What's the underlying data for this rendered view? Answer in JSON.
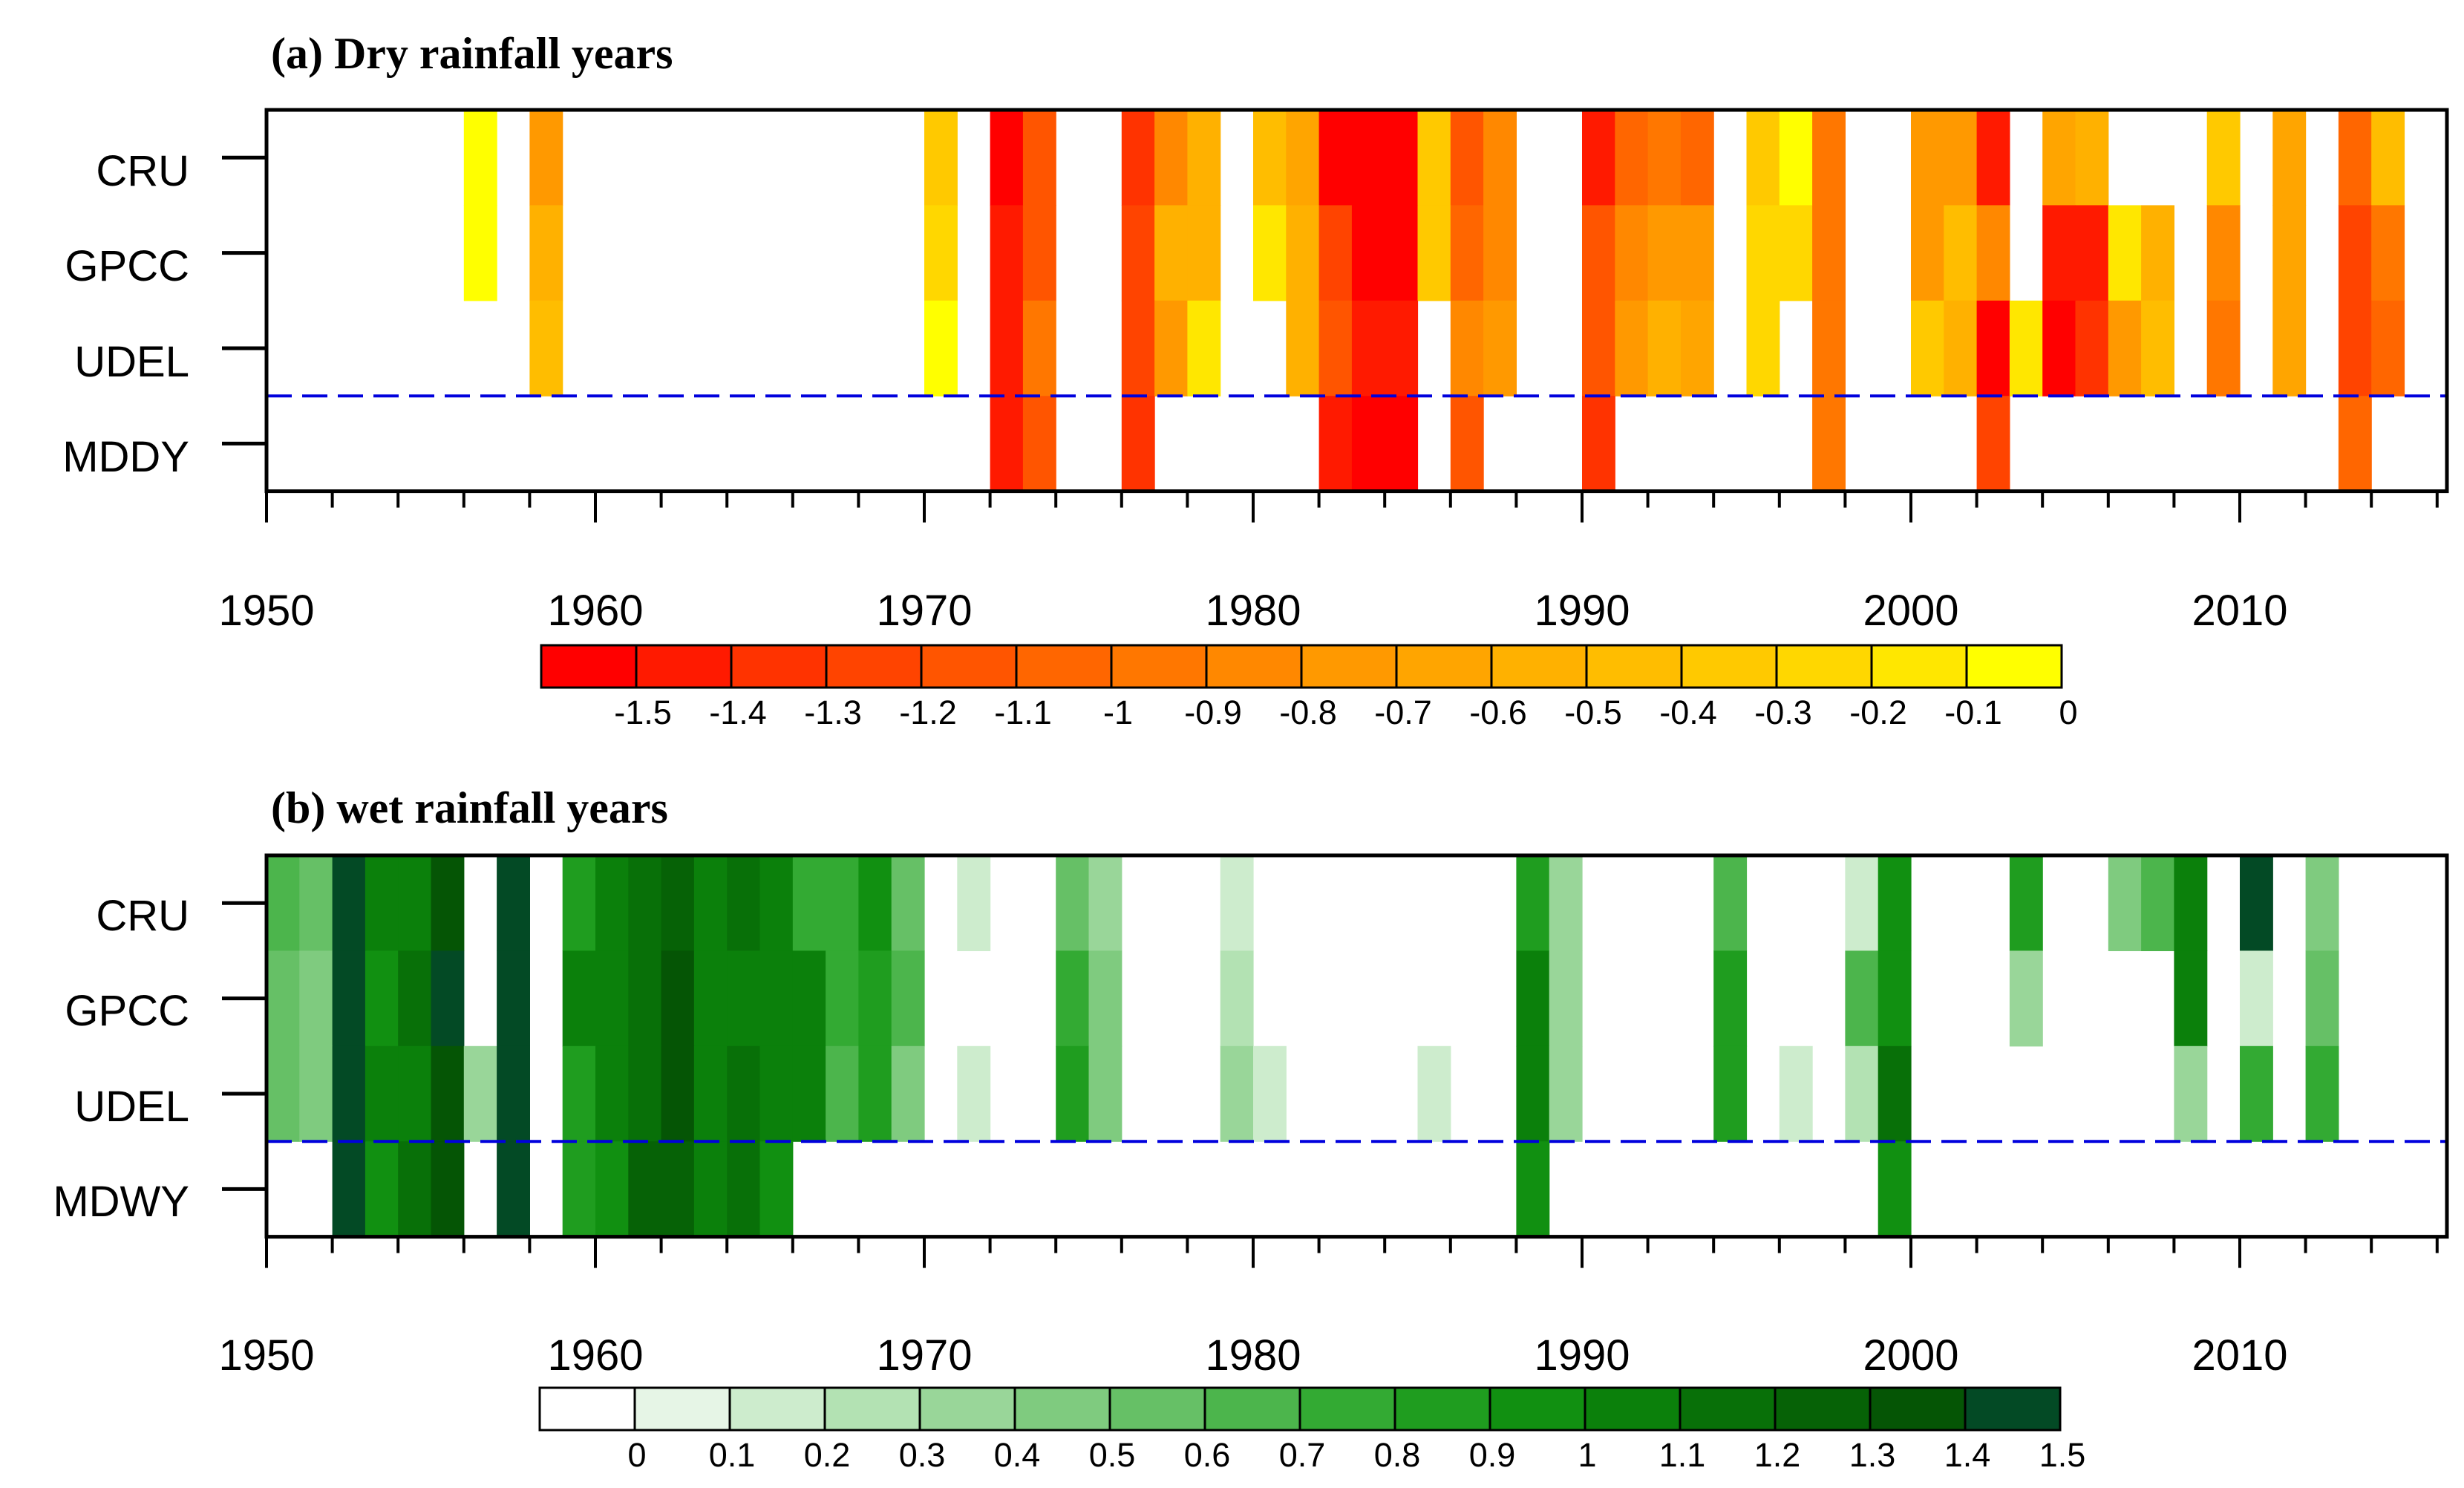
{
  "chart_data": [
    {
      "type": "heatmap",
      "panel": "a",
      "title": "(a) Dry rainfall years",
      "rows": [
        "CRU",
        "GPCC",
        "UDEL",
        "MDDY"
      ],
      "x_range": [
        1950,
        2016
      ],
      "x_ticks": [
        "1950",
        "1960",
        "1970",
        "1980",
        "1990",
        "2000",
        "2010"
      ],
      "colorbar_labels": [
        "-1.5",
        "-1.4",
        "-1.3",
        "-1.2",
        "-1.1",
        "-1",
        "-0.9",
        "-0.8",
        "-0.7",
        "-0.6",
        "-0.5",
        "-0.4",
        "-0.3",
        "-0.2",
        "-0.1",
        "0"
      ],
      "palette": [
        "#ff0000",
        "#ff1a00",
        "#ff3300",
        "#ff4400",
        "#ff5500",
        "#ff6600",
        "#ff7700",
        "#ff8800",
        "#ff9900",
        "#ffa500",
        "#ffb100",
        "#ffbd00",
        "#ffc900",
        "#ffd700",
        "#ffe700",
        "#ffff00"
      ],
      "separator_color": "#0000dd",
      "cells": {
        "CRU": [
          [
            1956,
            -0.05
          ],
          [
            1958,
            -0.75
          ],
          [
            1970,
            -0.35
          ],
          [
            1972,
            -1.55
          ],
          [
            1973,
            -1.15
          ],
          [
            1976,
            -1.4
          ],
          [
            1977,
            -0.85
          ],
          [
            1978,
            -0.55
          ],
          [
            1980,
            -0.45
          ],
          [
            1981,
            -0.65
          ],
          [
            1982,
            -1.6
          ],
          [
            1983,
            -1.6
          ],
          [
            1984,
            -1.6
          ],
          [
            1985,
            -0.4
          ],
          [
            1986,
            -1.2
          ],
          [
            1987,
            -0.9
          ],
          [
            1990,
            -1.45
          ],
          [
            1991,
            -1.05
          ],
          [
            1992,
            -0.95
          ],
          [
            1993,
            -1.05
          ],
          [
            1995,
            -0.35
          ],
          [
            1996,
            -0.1
          ],
          [
            1997,
            -1.0
          ],
          [
            2000,
            -0.8
          ],
          [
            2001,
            -0.8
          ],
          [
            2002,
            -1.45
          ],
          [
            2004,
            -0.65
          ],
          [
            2005,
            -0.55
          ],
          [
            2009,
            -0.4
          ],
          [
            2011,
            -0.7
          ],
          [
            2013,
            -1.05
          ],
          [
            2014,
            -0.5
          ]
        ],
        "GPCC": [
          [
            1956,
            -0.05
          ],
          [
            1958,
            -0.6
          ],
          [
            1970,
            -0.3
          ],
          [
            1972,
            -1.5
          ],
          [
            1973,
            -1.2
          ],
          [
            1976,
            -1.3
          ],
          [
            1977,
            -0.6
          ],
          [
            1978,
            -0.55
          ],
          [
            1980,
            -0.15
          ],
          [
            1981,
            -0.55
          ],
          [
            1982,
            -1.3
          ],
          [
            1983,
            -1.55
          ],
          [
            1984,
            -1.55
          ],
          [
            1985,
            -0.35
          ],
          [
            1986,
            -1.1
          ],
          [
            1987,
            -0.9
          ],
          [
            1990,
            -1.15
          ],
          [
            1991,
            -0.85
          ],
          [
            1992,
            -0.8
          ],
          [
            1993,
            -0.8
          ],
          [
            1995,
            -0.3
          ],
          [
            1996,
            -0.25
          ],
          [
            1997,
            -0.95
          ],
          [
            2000,
            -0.75
          ],
          [
            2001,
            -0.5
          ],
          [
            2002,
            -0.85
          ],
          [
            2004,
            -1.5
          ],
          [
            2005,
            -1.5
          ],
          [
            2006,
            -0.15
          ],
          [
            2007,
            -0.6
          ],
          [
            2009,
            -0.9
          ],
          [
            2011,
            -0.7
          ],
          [
            2013,
            -1.25
          ],
          [
            2014,
            -0.95
          ]
        ],
        "UDEL": [
          [
            1958,
            -0.45
          ],
          [
            1970,
            -0.1
          ],
          [
            1972,
            -1.5
          ],
          [
            1973,
            -0.95
          ],
          [
            1976,
            -1.3
          ],
          [
            1977,
            -0.75
          ],
          [
            1978,
            -0.2
          ],
          [
            1981,
            -0.6
          ],
          [
            1982,
            -1.2
          ],
          [
            1983,
            -1.5
          ],
          [
            1984,
            -1.5
          ],
          [
            1986,
            -0.9
          ],
          [
            1987,
            -0.8
          ],
          [
            1990,
            -1.15
          ],
          [
            1991,
            -0.75
          ],
          [
            1992,
            -0.6
          ],
          [
            1993,
            -0.7
          ],
          [
            1995,
            -0.3
          ],
          [
            1997,
            -0.95
          ],
          [
            2000,
            -0.35
          ],
          [
            2001,
            -0.55
          ],
          [
            2002,
            -1.55
          ],
          [
            2003,
            -0.15
          ],
          [
            2004,
            -1.55
          ],
          [
            2005,
            -1.35
          ],
          [
            2006,
            -0.8
          ],
          [
            2007,
            -0.45
          ],
          [
            2009,
            -1.0
          ],
          [
            2011,
            -0.7
          ],
          [
            2013,
            -1.25
          ],
          [
            2014,
            -1.1
          ]
        ],
        "MDDY": [
          [
            1972,
            -1.5
          ],
          [
            1973,
            -1.2
          ],
          [
            1976,
            -1.4
          ],
          [
            1982,
            -1.5
          ],
          [
            1983,
            -1.6
          ],
          [
            1984,
            -1.6
          ],
          [
            1986,
            -1.15
          ],
          [
            1990,
            -1.35
          ],
          [
            1997,
            -1.0
          ],
          [
            2002,
            -1.3
          ],
          [
            2013,
            -1.05
          ]
        ]
      }
    },
    {
      "type": "heatmap",
      "panel": "b",
      "title": "(b) wet rainfall years",
      "rows": [
        "CRU",
        "GPCC",
        "UDEL",
        "MDWY"
      ],
      "x_range": [
        1950,
        2016
      ],
      "x_ticks": [
        "1950",
        "1960",
        "1970",
        "1980",
        "1990",
        "2000",
        "2010"
      ],
      "colorbar_labels": [
        "0",
        "0.1",
        "0.2",
        "0.3",
        "0.4",
        "0.5",
        "0.6",
        "0.7",
        "0.8",
        "0.9",
        "1",
        "1.1",
        "1.2",
        "1.3",
        "1.4",
        "1.5"
      ],
      "palette": [
        "#ffffff",
        "#e6f5e6",
        "#cdeccd",
        "#b3e2b3",
        "#99d699",
        "#7fcb7f",
        "#66c066",
        "#4cb54c",
        "#33aa33",
        "#1f9d1f",
        "#119011",
        "#0b800b",
        "#087008",
        "#066206",
        "#055505",
        "#034a25"
      ],
      "separator_color": "#0000dd",
      "cells": {
        "CRU": [
          [
            1950,
            0.65
          ],
          [
            1951,
            0.5
          ],
          [
            1952,
            1.55
          ],
          [
            1953,
            1.0
          ],
          [
            1954,
            1.0
          ],
          [
            1955,
            1.3
          ],
          [
            1957,
            1.5
          ],
          [
            1959,
            0.85
          ],
          [
            1960,
            1.0
          ],
          [
            1961,
            1.15
          ],
          [
            1962,
            1.2
          ],
          [
            1963,
            1.0
          ],
          [
            1964,
            1.1
          ],
          [
            1965,
            1.05
          ],
          [
            1966,
            0.75
          ],
          [
            1967,
            0.75
          ],
          [
            1968,
            0.9
          ],
          [
            1969,
            0.5
          ],
          [
            1971,
            0.1
          ],
          [
            1974,
            0.55
          ],
          [
            1975,
            0.35
          ],
          [
            1979,
            0.15
          ],
          [
            1988,
            0.85
          ],
          [
            1989,
            0.3
          ],
          [
            1994,
            0.6
          ],
          [
            1998,
            0.1
          ],
          [
            1999,
            0.95
          ],
          [
            2003,
            0.85
          ],
          [
            2006,
            0.45
          ],
          [
            2007,
            0.65
          ],
          [
            2008,
            1.05
          ],
          [
            2010,
            1.5
          ],
          [
            2012,
            0.4
          ]
        ],
        "GPCC": [
          [
            1950,
            0.55
          ],
          [
            1951,
            0.4
          ],
          [
            1952,
            1.55
          ],
          [
            1953,
            0.95
          ],
          [
            1954,
            1.15
          ],
          [
            1955,
            1.4
          ],
          [
            1957,
            1.5
          ],
          [
            1959,
            1.05
          ],
          [
            1960,
            1.05
          ],
          [
            1961,
            1.15
          ],
          [
            1962,
            1.3
          ],
          [
            1963,
            1.05
          ],
          [
            1964,
            1.0
          ],
          [
            1965,
            1.0
          ],
          [
            1966,
            1.05
          ],
          [
            1967,
            0.75
          ],
          [
            1968,
            0.85
          ],
          [
            1969,
            0.65
          ],
          [
            1974,
            0.7
          ],
          [
            1975,
            0.45
          ],
          [
            1979,
            0.2
          ],
          [
            1988,
            1.0
          ],
          [
            1989,
            0.35
          ],
          [
            1994,
            0.85
          ],
          [
            1998,
            0.6
          ],
          [
            1999,
            0.95
          ],
          [
            2003,
            0.3
          ],
          [
            2008,
            1.0
          ],
          [
            2010,
            0.1
          ],
          [
            2012,
            0.5
          ]
        ],
        "UDEL": [
          [
            1950,
            0.55
          ],
          [
            1951,
            0.4
          ],
          [
            1952,
            1.55
          ],
          [
            1953,
            1.05
          ],
          [
            1954,
            1.05
          ],
          [
            1955,
            1.3
          ],
          [
            1956,
            0.3
          ],
          [
            1957,
            1.5
          ],
          [
            1959,
            0.8
          ],
          [
            1960,
            1.0
          ],
          [
            1961,
            1.15
          ],
          [
            1962,
            1.35
          ],
          [
            1963,
            1.05
          ],
          [
            1964,
            1.1
          ],
          [
            1965,
            1.0
          ],
          [
            1966,
            1.0
          ],
          [
            1967,
            0.65
          ],
          [
            1968,
            0.85
          ],
          [
            1969,
            0.45
          ],
          [
            1971,
            0.15
          ],
          [
            1974,
            0.8
          ],
          [
            1975,
            0.45
          ],
          [
            1979,
            0.35
          ],
          [
            1980,
            0.1
          ],
          [
            1985,
            0.1
          ],
          [
            1988,
            1.0
          ],
          [
            1989,
            0.35
          ],
          [
            1994,
            0.85
          ],
          [
            1996,
            0.15
          ],
          [
            1998,
            0.25
          ],
          [
            1999,
            1.15
          ],
          [
            2008,
            0.35
          ],
          [
            2010,
            0.75
          ],
          [
            2012,
            0.75
          ]
        ],
        "MDWY": [
          [
            1952,
            1.55
          ],
          [
            1953,
            0.95
          ],
          [
            1954,
            1.1
          ],
          [
            1955,
            1.35
          ],
          [
            1957,
            1.5
          ],
          [
            1959,
            0.85
          ],
          [
            1960,
            0.9
          ],
          [
            1961,
            1.25
          ],
          [
            1962,
            1.25
          ],
          [
            1963,
            1.0
          ],
          [
            1964,
            1.15
          ],
          [
            1965,
            0.95
          ],
          [
            1988,
            0.9
          ],
          [
            1999,
            0.95
          ]
        ]
      }
    }
  ]
}
